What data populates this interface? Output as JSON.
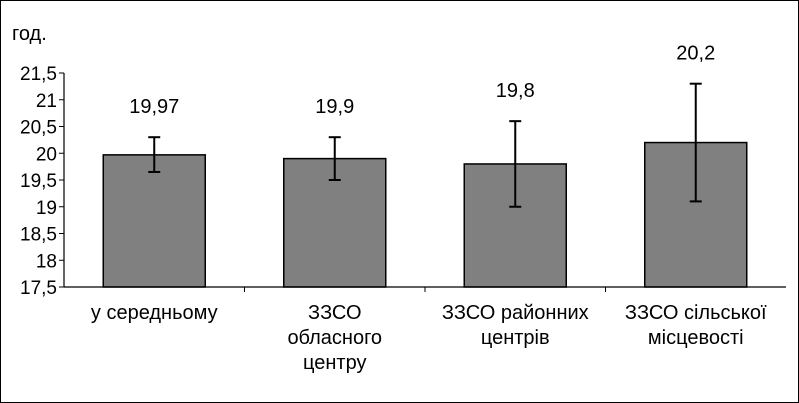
{
  "chart_data": {
    "type": "bar",
    "ylabel": "год.",
    "ylim": [
      17.5,
      21.5
    ],
    "y_ticks": [
      "17,5",
      "18",
      "18,5",
      "19",
      "19,5",
      "20",
      "20,5",
      "21",
      "21,5"
    ],
    "y_tick_values": [
      17.5,
      18,
      18.5,
      19,
      19.5,
      20,
      20.5,
      21,
      21.5
    ],
    "categories": [
      [
        "у середньому"
      ],
      [
        "ЗЗСО",
        "обласного",
        "центру"
      ],
      [
        "ЗЗСО районних",
        "центрів"
      ],
      [
        "ЗЗСО сільської",
        "місцевості"
      ]
    ],
    "values": [
      19.97,
      19.9,
      19.8,
      20.2
    ],
    "value_labels": [
      "19,97",
      "19,9",
      "19,8",
      "20,2"
    ],
    "error_low": [
      19.65,
      19.5,
      19.0,
      19.1
    ],
    "error_high": [
      20.3,
      20.3,
      20.6,
      21.3
    ],
    "bar_color": "#808080",
    "grid": false,
    "legend": "none"
  }
}
